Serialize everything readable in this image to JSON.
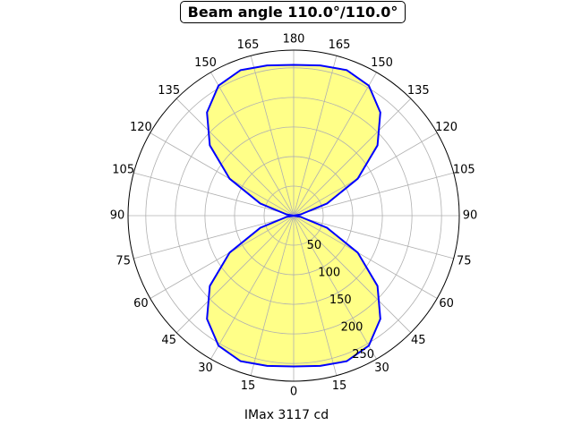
{
  "chart_data": {
    "type": "polar-area",
    "title": "Beam angle 110.0°/110.0°",
    "xlabel": "IMax 3117 cd",
    "angle_tick_labels_right": [
      "0",
      "15",
      "30",
      "45",
      "60",
      "75",
      "90",
      "105",
      "120",
      "135",
      "150",
      "165",
      "180"
    ],
    "angle_tick_labels_left": [
      "15",
      "30",
      "45",
      "60",
      "75",
      "90",
      "105",
      "120",
      "135",
      "150",
      "165"
    ],
    "radial_ticks": [
      50,
      100,
      150,
      200,
      250
    ],
    "radial_tick_labels": [
      "50",
      "100",
      "150",
      "200",
      "250"
    ],
    "rlim": [
      0,
      280
    ],
    "grid": true,
    "colors": {
      "line": "#0000ff",
      "fill": "#ffff88",
      "grid": "#b0b0b0"
    },
    "series": [
      {
        "angles_deg": [
          0,
          10,
          20,
          30,
          40,
          50,
          60,
          70,
          80,
          90,
          100,
          110,
          120,
          130,
          140,
          150,
          160,
          170,
          180,
          190,
          200,
          210,
          220,
          230,
          240,
          250,
          260,
          270,
          280,
          290,
          300,
          310,
          320,
          330,
          340,
          350
        ],
        "values": [
          255,
          258,
          262,
          254,
          228,
          185,
          125,
          60,
          12,
          0,
          12,
          60,
          125,
          185,
          228,
          254,
          262,
          258,
          255,
          258,
          262,
          254,
          228,
          185,
          125,
          60,
          12,
          0,
          12,
          60,
          125,
          185,
          228,
          254,
          262,
          258
        ]
      }
    ]
  }
}
